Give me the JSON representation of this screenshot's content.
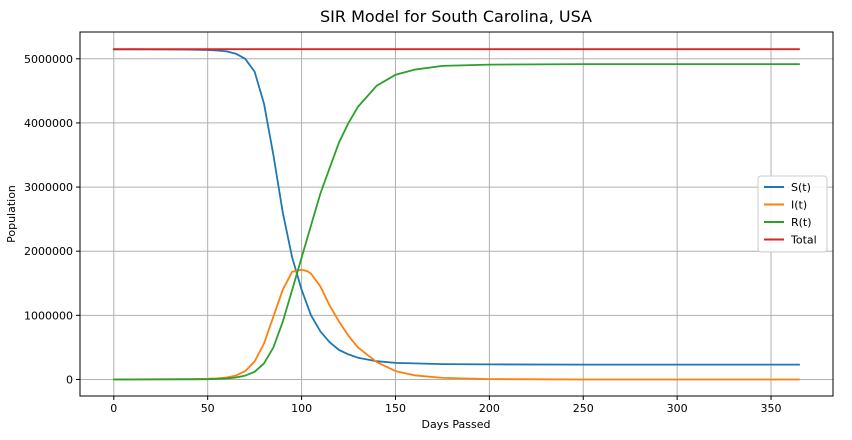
{
  "chart_data": {
    "type": "line",
    "title": "SIR Model for South Carolina, USA",
    "xlabel": "Days Passed",
    "ylabel": "Population",
    "xlim": [
      -18,
      383
    ],
    "ylim": [
      -258000,
      5418000
    ],
    "xticks": [
      0,
      50,
      100,
      150,
      200,
      250,
      300,
      350
    ],
    "yticks": [
      0,
      1000000,
      2000000,
      3000000,
      4000000,
      5000000
    ],
    "grid": true,
    "legend_position": "center-right",
    "series": [
      {
        "name": "S(t)",
        "color": "#1f77b4",
        "x": [
          0,
          20,
          40,
          50,
          55,
          60,
          65,
          70,
          75,
          80,
          85,
          90,
          95,
          100,
          105,
          110,
          115,
          120,
          125,
          130,
          140,
          150,
          175,
          200,
          250,
          300,
          365
        ],
        "y": [
          5148000,
          5147000,
          5143000,
          5138000,
          5130000,
          5115000,
          5080000,
          5000000,
          4800000,
          4300000,
          3500000,
          2600000,
          1900000,
          1400000,
          1000000,
          750000,
          580000,
          460000,
          390000,
          340000,
          285000,
          258000,
          240000,
          235000,
          232000,
          232000,
          232000
        ]
      },
      {
        "name": "I(t)",
        "color": "#ff7f0e",
        "x": [
          0,
          20,
          40,
          50,
          55,
          60,
          65,
          70,
          75,
          80,
          85,
          90,
          95,
          100,
          103,
          105,
          110,
          115,
          120,
          125,
          130,
          140,
          150,
          160,
          175,
          200,
          250,
          300,
          365
        ],
        "y": [
          1000,
          2000,
          5000,
          10000,
          17000,
          30000,
          60000,
          130000,
          280000,
          560000,
          980000,
          1400000,
          1680000,
          1710000,
          1690000,
          1650000,
          1450000,
          1150000,
          900000,
          680000,
          500000,
          270000,
          130000,
          65000,
          25000,
          5000,
          0,
          0,
          0
        ]
      },
      {
        "name": "R(t)",
        "color": "#2ca02c",
        "x": [
          0,
          20,
          40,
          50,
          55,
          60,
          65,
          70,
          75,
          80,
          85,
          90,
          95,
          100,
          105,
          110,
          115,
          120,
          125,
          130,
          140,
          150,
          160,
          175,
          200,
          250,
          300,
          365
        ],
        "y": [
          0,
          500,
          2000,
          4000,
          8000,
          15000,
          30000,
          60000,
          120000,
          250000,
          500000,
          900000,
          1400000,
          1900000,
          2400000,
          2900000,
          3300000,
          3700000,
          4000000,
          4250000,
          4580000,
          4750000,
          4830000,
          4890000,
          4910000,
          4918000,
          4918000,
          4918000
        ]
      },
      {
        "name": "Total",
        "color": "#d62728",
        "x": [
          0,
          365
        ],
        "y": [
          5150000,
          5150000
        ]
      }
    ]
  }
}
